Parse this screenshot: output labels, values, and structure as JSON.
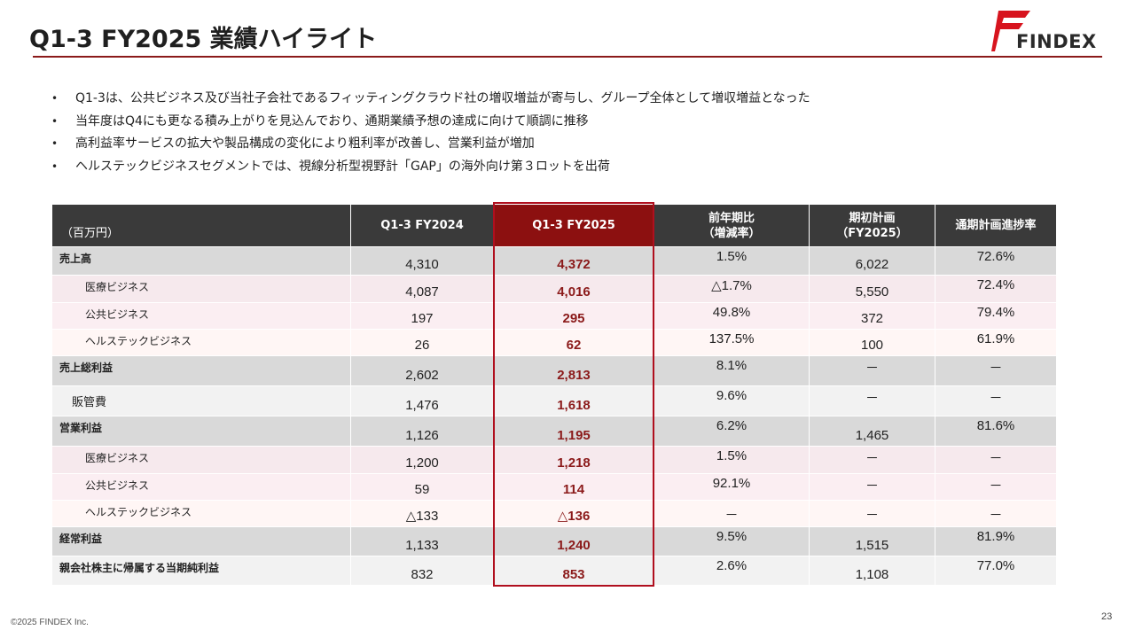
{
  "header": {
    "title": "Q1-3 FY2025 業績ハイライト",
    "logo_text": "FINDEX",
    "brand_color": "#d7141e",
    "rule_color": "#8b1a1a"
  },
  "bullets": [
    "Q1-3は、公共ビジネス及び当社子会社であるフィッティングクラウド社の増収増益が寄与し、グループ全体として増収増益となった",
    "当年度はQ4にも更なる積み上がりを見込んでおり、通期業績予想の達成に向けて順調に推移",
    "高利益率サービスの拡大や製品構成の変化により粗利率が改善し、営業利益が増加",
    "ヘルステックビジネスセグメントでは、視線分析型視野計「GAP」の海外向け第３ロットを出荷"
  ],
  "bullet_symbol": "•",
  "table": {
    "unit": "（百万円）",
    "columns": [
      {
        "line1": "Q1-3 FY2024",
        "line2": ""
      },
      {
        "line1": "Q1-3 FY2025",
        "line2": ""
      },
      {
        "line1": "前年期比",
        "line2": "（増減率）"
      },
      {
        "line1": "期初計画",
        "line2": "（FY2025）"
      },
      {
        "line1": "通期計画進捗率",
        "line2": ""
      }
    ],
    "rows": [
      {
        "label": "売上高",
        "values": [
          "4,310",
          "4,372",
          "1.5%",
          "6,022",
          "72.6%"
        ]
      },
      {
        "label": "医療ビジネス",
        "values": [
          "4,087",
          "4,016",
          "△1.7%",
          "5,550",
          "72.4%"
        ]
      },
      {
        "label": "公共ビジネス",
        "values": [
          "197",
          "295",
          "49.8%",
          "372",
          "79.4%"
        ]
      },
      {
        "label": "ヘルステックビジネス",
        "values": [
          "26",
          "62",
          "137.5%",
          "100",
          "61.9%"
        ]
      },
      {
        "label": "売上総利益",
        "values": [
          "2,602",
          "2,813",
          "8.1%",
          "－",
          "－"
        ]
      },
      {
        "label": "販管費",
        "values": [
          "1,476",
          "1,618",
          "9.6%",
          "－",
          "－"
        ]
      },
      {
        "label": "営業利益",
        "values": [
          "1,126",
          "1,195",
          "6.2%",
          "1,465",
          "81.6%"
        ]
      },
      {
        "label": "医療ビジネス",
        "values": [
          "1,200",
          "1,218",
          "1.5%",
          "－",
          "－"
        ]
      },
      {
        "label": "公共ビジネス",
        "values": [
          "59",
          "114",
          "92.1%",
          "－",
          "－"
        ]
      },
      {
        "label": "ヘルステックビジネス",
        "values": [
          "△133",
          "△136",
          "－",
          "－",
          "－"
        ]
      },
      {
        "label": "経常利益",
        "values": [
          "1,133",
          "1,240",
          "9.5%",
          "1,515",
          "81.9%"
        ]
      },
      {
        "label": "親会社株主に帰属する当期純利益",
        "values": [
          "832",
          "853",
          "2.6%",
          "1,108",
          "77.0%"
        ]
      }
    ],
    "highlight_color": "#8c1010"
  },
  "footer": {
    "copyright": "©2025 FINDEX Inc.",
    "page_number": "23"
  }
}
